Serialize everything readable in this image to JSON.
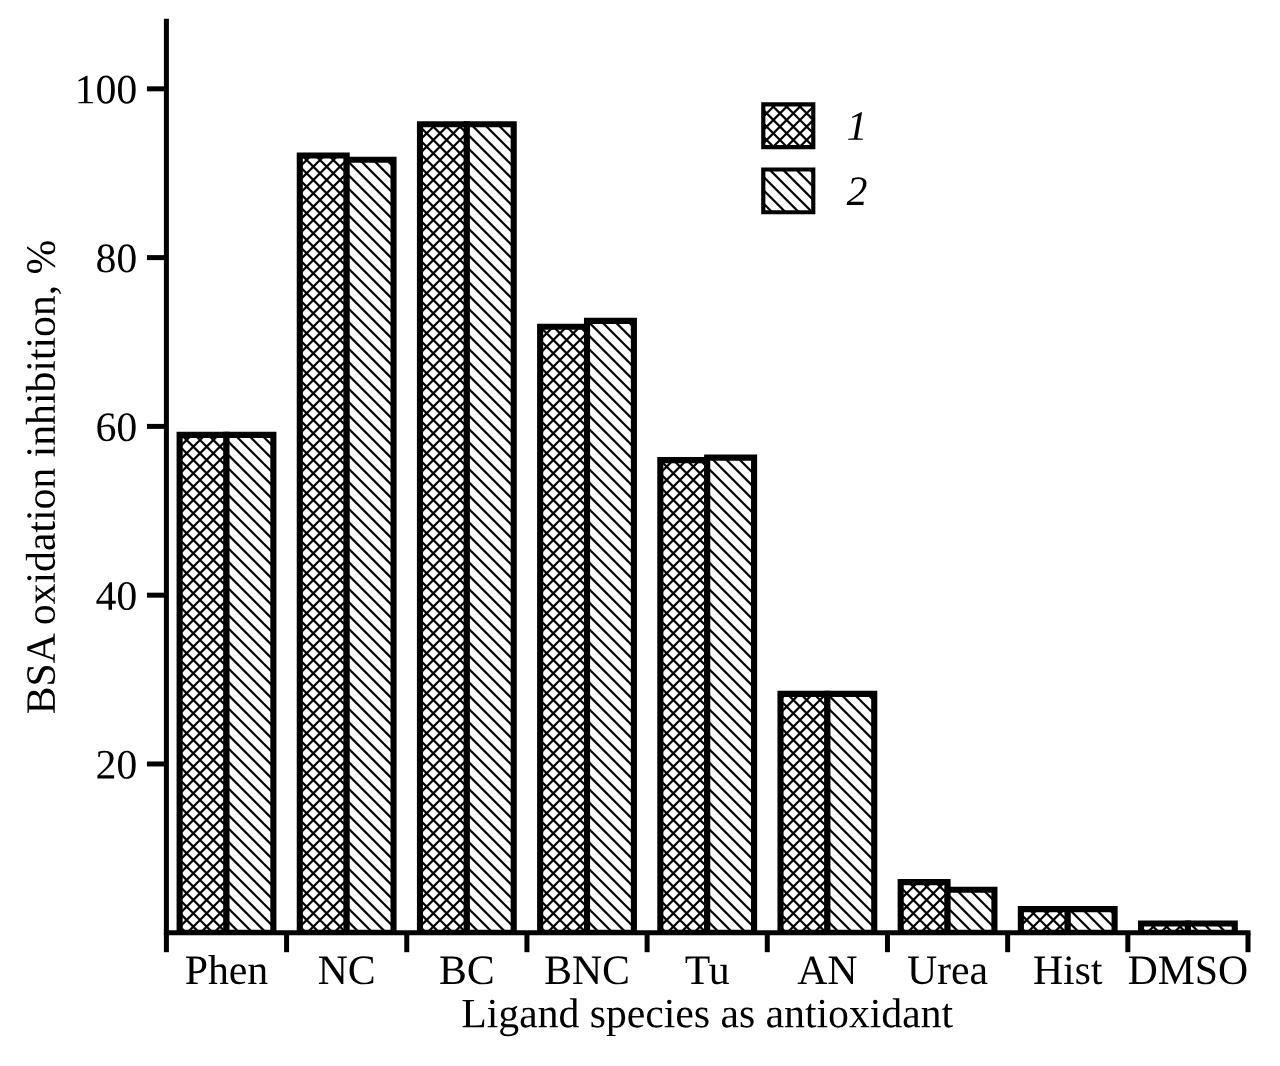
{
  "chart_data": {
    "type": "bar",
    "xlabel": "Ligand species as antioxidant",
    "ylabel": "BSA oxidation inhibition, %",
    "categories": [
      "Phen",
      "NC",
      "BC",
      "BNC",
      "Tu",
      "AN",
      "Urea",
      "Hist",
      "DMSO"
    ],
    "series": [
      {
        "name": "1",
        "color": "#000000",
        "values": [
          59.0,
          92.1,
          95.8,
          71.8,
          56.0,
          28.3,
          6.0,
          2.8,
          1.1
        ]
      },
      {
        "name": "2",
        "color": "#000000",
        "values": [
          59.0,
          91.6,
          95.8,
          72.5,
          56.3,
          28.3,
          5.1,
          2.8,
          1.1
        ]
      }
    ],
    "ylim": [
      0,
      108
    ],
    "yticks": [
      20,
      40,
      60,
      80,
      100
    ],
    "grid": false,
    "legend": "top"
  }
}
